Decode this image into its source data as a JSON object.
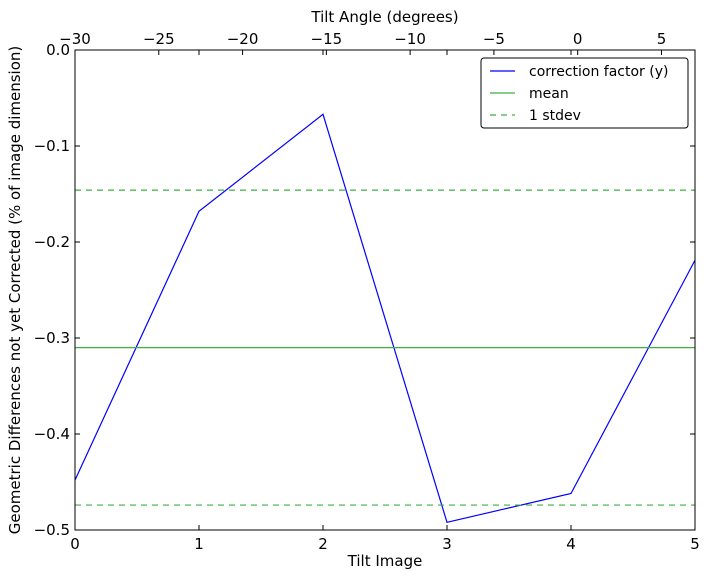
{
  "chart_data": {
    "type": "line",
    "xlabel": "Tilt Image",
    "ylabel": "Geometric Differences not yet Corrected (% of image dimension)",
    "top_xlabel": "Tilt Angle (degrees)",
    "xlim": [
      0,
      5
    ],
    "ylim": [
      -0.5,
      0.0
    ],
    "top_xlim": [
      -30,
      7
    ],
    "x_ticks": [
      0,
      1,
      2,
      3,
      4,
      5
    ],
    "x_tick_labels": [
      "0",
      "1",
      "2",
      "3",
      "4",
      "5"
    ],
    "y_ticks": [
      0.0,
      -0.1,
      -0.2,
      -0.3,
      -0.4,
      -0.5
    ],
    "y_tick_labels": [
      "0.0",
      "−0.1",
      "−0.2",
      "−0.3",
      "−0.4",
      "−0.5"
    ],
    "top_ticks": [
      -30,
      -25,
      -20,
      -15,
      -10,
      -5,
      0,
      5
    ],
    "top_tick_labels": [
      "−30",
      "−25",
      "−20",
      "−15",
      "−10",
      "−5",
      "0",
      "5"
    ],
    "grid": false,
    "legend_position": "top-right",
    "series": [
      {
        "name": "correction factor (y)",
        "color": "#0000ff",
        "style": "solid",
        "x": [
          0,
          1,
          2,
          3,
          4,
          5
        ],
        "y": [
          -0.448,
          -0.168,
          -0.067,
          -0.492,
          -0.462,
          -0.219
        ]
      },
      {
        "name": "mean",
        "color": "#3cb043",
        "style": "solid",
        "x": [
          0,
          5
        ],
        "y": [
          -0.31,
          -0.31
        ]
      },
      {
        "name": "1 stdev",
        "color": "#3cb043",
        "style": "dashed",
        "x": [
          0,
          5
        ],
        "y": [
          -0.146,
          -0.146
        ],
        "lower": [
          -0.474,
          -0.474
        ]
      }
    ]
  }
}
